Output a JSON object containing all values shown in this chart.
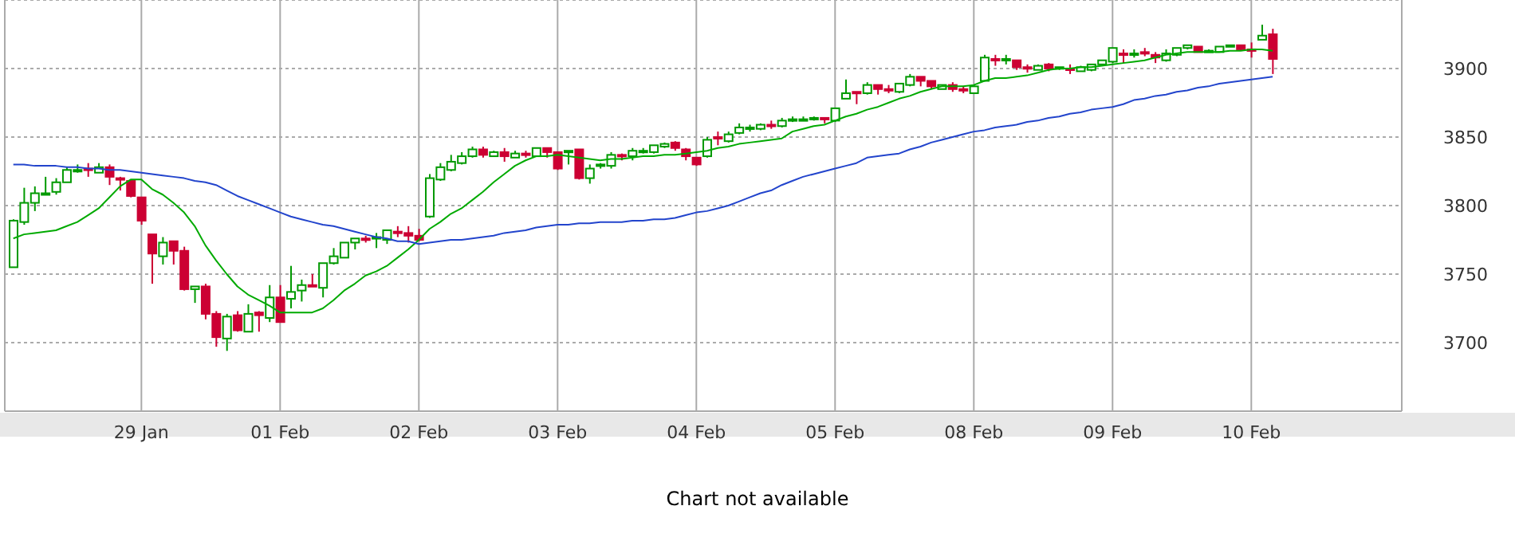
{
  "chart_data": {
    "type": "candlestick",
    "categories": [
      null,
      null,
      null,
      null,
      null,
      null,
      null,
      null,
      null,
      null,
      null,
      null,
      "29 Jan",
      null,
      null,
      null,
      null,
      null,
      null,
      null,
      null,
      null,
      null,
      null,
      null,
      "01 Feb",
      null,
      null,
      null,
      null,
      null,
      null,
      null,
      null,
      null,
      null,
      null,
      null,
      "02 Feb",
      null,
      null,
      null,
      null,
      null,
      null,
      null,
      null,
      null,
      null,
      null,
      null,
      "03 Feb",
      null,
      null,
      null,
      null,
      null,
      null,
      null,
      null,
      null,
      null,
      null,
      null,
      "04 Feb",
      null,
      null,
      null,
      null,
      null,
      null,
      null,
      null,
      null,
      null,
      null,
      null,
      "05 Feb",
      null,
      null,
      null,
      null,
      null,
      null,
      null,
      null,
      null,
      null,
      null,
      null,
      "08 Feb",
      null,
      null,
      null,
      null,
      null,
      null,
      null,
      null,
      null,
      null,
      null,
      null,
      "09 Feb",
      null,
      null,
      null,
      null,
      null,
      null,
      null,
      null,
      null,
      null,
      null,
      null,
      "10 Feb",
      null,
      null
    ],
    "ohlc": [
      [
        3755,
        3790,
        3755,
        3789
      ],
      [
        3788,
        3813,
        3786,
        3802
      ],
      [
        3802,
        3814,
        3796,
        3809
      ],
      [
        3808,
        3821,
        3808,
        3809
      ],
      [
        3810,
        3820,
        3808,
        3817
      ],
      [
        3817,
        3828,
        3817,
        3826
      ],
      [
        3825,
        3830,
        3824,
        3826
      ],
      [
        3827,
        3831,
        3821,
        3826
      ],
      [
        3824,
        3831,
        3824,
        3828
      ],
      [
        3828,
        3830,
        3815,
        3821
      ],
      [
        3820,
        3821,
        3811,
        3819
      ],
      [
        3818,
        3819,
        3806,
        3807
      ],
      [
        3806,
        3806,
        3786,
        3789
      ],
      [
        3779,
        3779,
        3743,
        3765
      ],
      [
        3763,
        3777,
        3757,
        3773
      ],
      [
        3774,
        3774,
        3757,
        3767
      ],
      [
        3767,
        3770,
        3738,
        3739
      ],
      [
        3739,
        3741,
        3729,
        3741
      ],
      [
        3741,
        3743,
        3717,
        3721
      ],
      [
        3721,
        3723,
        3697,
        3704
      ],
      [
        3703,
        3721,
        3694,
        3719
      ],
      [
        3720,
        3723,
        3708,
        3709
      ],
      [
        3708,
        3728,
        3708,
        3721
      ],
      [
        3722,
        3723,
        3708,
        3720
      ],
      [
        3718,
        3742,
        3715,
        3733
      ],
      [
        3733,
        3742,
        3715,
        3715
      ],
      [
        3732,
        3756,
        3725,
        3737
      ],
      [
        3738,
        3746,
        3730,
        3742
      ],
      [
        3742,
        3750,
        3741,
        3741
      ],
      [
        3740,
        3758,
        3733,
        3758
      ],
      [
        3758,
        3769,
        3757,
        3763
      ],
      [
        3762,
        3773,
        3762,
        3773
      ],
      [
        3773,
        3776,
        3768,
        3776
      ],
      [
        3776,
        3778,
        3773,
        3775
      ],
      [
        3776,
        3780,
        3769,
        3777
      ],
      [
        3775,
        3782,
        3772,
        3782
      ],
      [
        3781,
        3785,
        3777,
        3780
      ],
      [
        3780,
        3785,
        3773,
        3778
      ],
      [
        3778,
        3783,
        3774,
        3775
      ],
      [
        3792,
        3823,
        3791,
        3820
      ],
      [
        3819,
        3831,
        3818,
        3828
      ],
      [
        3826,
        3837,
        3825,
        3832
      ],
      [
        3831,
        3839,
        3830,
        3836
      ],
      [
        3836,
        3843,
        3835,
        3841
      ],
      [
        3841,
        3843,
        3835,
        3837
      ],
      [
        3836,
        3840,
        3836,
        3839
      ],
      [
        3839,
        3842,
        3832,
        3836
      ],
      [
        3835,
        3840,
        3835,
        3838
      ],
      [
        3838,
        3840,
        3835,
        3837
      ],
      [
        3836,
        3842,
        3836,
        3842
      ],
      [
        3842,
        3842,
        3835,
        3839
      ],
      [
        3839,
        3839,
        3826,
        3827
      ],
      [
        3839,
        3840,
        3830,
        3840
      ],
      [
        3841,
        3841,
        3819,
        3820
      ],
      [
        3820,
        3830,
        3816,
        3827
      ],
      [
        3829,
        3831,
        3827,
        3830
      ],
      [
        3829,
        3839,
        3827,
        3837
      ],
      [
        3837,
        3838,
        3833,
        3836
      ],
      [
        3836,
        3842,
        3833,
        3840
      ],
      [
        3839,
        3842,
        3838,
        3840
      ],
      [
        3839,
        3844,
        3838,
        3844
      ],
      [
        3843,
        3846,
        3842,
        3845
      ],
      [
        3846,
        3847,
        3840,
        3842
      ],
      [
        3841,
        3842,
        3833,
        3836
      ],
      [
        3835,
        3835,
        3829,
        3830
      ],
      [
        3836,
        3850,
        3835,
        3848
      ],
      [
        3850,
        3854,
        3844,
        3849
      ],
      [
        3847,
        3854,
        3846,
        3852
      ],
      [
        3853,
        3860,
        3852,
        3857
      ],
      [
        3856,
        3859,
        3854,
        3857
      ],
      [
        3856,
        3860,
        3855,
        3859
      ],
      [
        3859,
        3862,
        3856,
        3858
      ],
      [
        3858,
        3864,
        3857,
        3862
      ],
      [
        3862,
        3865,
        3861,
        3863
      ],
      [
        3862,
        3865,
        3862,
        3863
      ],
      [
        3863,
        3865,
        3862,
        3864
      ],
      [
        3864,
        3864,
        3860,
        3863
      ],
      [
        3862,
        3871,
        3861,
        3871
      ],
      [
        3878,
        3892,
        3878,
        3882
      ],
      [
        3883,
        3883,
        3874,
        3882
      ],
      [
        3882,
        3890,
        3881,
        3888
      ],
      [
        3888,
        3888,
        3881,
        3885
      ],
      [
        3885,
        3888,
        3882,
        3884
      ],
      [
        3883,
        3889,
        3882,
        3889
      ],
      [
        3888,
        3896,
        3887,
        3894
      ],
      [
        3894,
        3894,
        3887,
        3891
      ],
      [
        3891,
        3891,
        3885,
        3887
      ],
      [
        3885,
        3888,
        3885,
        3888
      ],
      [
        3888,
        3890,
        3883,
        3885
      ],
      [
        3885,
        3887,
        3882,
        3884
      ],
      [
        3882,
        3888,
        3882,
        3887
      ],
      [
        3891,
        3910,
        3891,
        3908
      ],
      [
        3907,
        3910,
        3902,
        3906
      ],
      [
        3906,
        3910,
        3903,
        3907
      ],
      [
        3906,
        3906,
        3899,
        3901
      ],
      [
        3901,
        3903,
        3897,
        3900
      ],
      [
        3899,
        3903,
        3899,
        3902
      ],
      [
        3903,
        3904,
        3898,
        3900
      ],
      [
        3900,
        3901,
        3899,
        3901
      ],
      [
        3900,
        3903,
        3896,
        3899
      ],
      [
        3898,
        3902,
        3898,
        3901
      ],
      [
        3899,
        3903,
        3898,
        3903
      ],
      [
        3903,
        3906,
        3903,
        3906
      ],
      [
        3905,
        3915,
        3904,
        3915
      ],
      [
        3911,
        3914,
        3904,
        3910
      ],
      [
        3910,
        3914,
        3908,
        3911
      ],
      [
        3912,
        3915,
        3909,
        3911
      ],
      [
        3910,
        3912,
        3904,
        3908
      ],
      [
        3906,
        3914,
        3905,
        3911
      ],
      [
        3910,
        3915,
        3909,
        3915
      ],
      [
        3915,
        3917,
        3914,
        3917
      ],
      [
        3916,
        3916,
        3912,
        3912
      ],
      [
        3912,
        3914,
        3912,
        3913
      ],
      [
        3912,
        3916,
        3912,
        3916
      ],
      [
        3916,
        3917,
        3916,
        3917
      ],
      [
        3917,
        3917,
        3913,
        3914
      ],
      [
        3914,
        3919,
        3908,
        3913
      ],
      [
        3921,
        3932,
        3921,
        3924
      ],
      [
        3925,
        3929,
        3896,
        3907
      ]
    ],
    "colors": [
      "#009900",
      "#009900",
      "#009900",
      "#009900",
      "#009900",
      "#009900",
      "#009900",
      "#cc0033",
      "#009900",
      "#cc0033",
      "#cc0033",
      "#cc0033",
      "#cc0033",
      "#cc0033",
      "#009900",
      "#cc0033",
      "#cc0033",
      "#009900",
      "#cc0033",
      "#cc0033",
      "#009900",
      "#cc0033",
      "#009900",
      "#cc0033",
      "#009900",
      "#cc0033",
      "#009900",
      "#009900",
      "#cc0033",
      "#009900",
      "#009900",
      "#009900",
      "#009900",
      "#cc0033",
      "#009900",
      "#009900",
      "#cc0033",
      "#cc0033",
      "#cc0033",
      "#009900",
      "#009900",
      "#009900",
      "#009900",
      "#009900",
      "#cc0033",
      "#009900",
      "#cc0033",
      "#009900",
      "#cc0033",
      "#009900",
      "#cc0033",
      "#cc0033",
      "#009900",
      "#cc0033",
      "#009900",
      "#009900",
      "#009900",
      "#cc0033",
      "#009900",
      "#009900",
      "#009900",
      "#009900",
      "#cc0033",
      "#cc0033",
      "#cc0033",
      "#009900",
      "#cc0033",
      "#009900",
      "#009900",
      "#009900",
      "#009900",
      "#cc0033",
      "#009900",
      "#009900",
      "#009900",
      "#009900",
      "#cc0033",
      "#009900",
      "#009900",
      "#cc0033",
      "#009900",
      "#cc0033",
      "#cc0033",
      "#009900",
      "#009900",
      "#cc0033",
      "#cc0033",
      "#009900",
      "#cc0033",
      "#cc0033",
      "#009900",
      "#009900",
      "#cc0033",
      "#009900",
      "#cc0033",
      "#cc0033",
      "#009900",
      "#cc0033",
      "#009900",
      "#cc0033",
      "#009900",
      "#009900",
      "#009900",
      "#009900",
      "#cc0033",
      "#009900",
      "#cc0033",
      "#cc0033",
      "#009900",
      "#009900",
      "#009900",
      "#cc0033",
      "#009900",
      "#009900",
      "#009900",
      "#cc0033",
      "#cc0033",
      "#009900",
      "#cc0033"
    ],
    "series": [
      {
        "type": "line",
        "color": "#00aa00",
        "values": [
          3776,
          3779,
          3780,
          3781,
          3782,
          3785,
          3788,
          3793,
          3798,
          3806,
          3814,
          3819,
          3819,
          3812,
          3808,
          3802,
          3795,
          3785,
          3771,
          3760,
          3750,
          3741,
          3735,
          3731,
          3727,
          3722,
          3722,
          3722,
          3722,
          3725,
          3731,
          3738,
          3743,
          3749,
          3752,
          3756,
          3762,
          3768,
          3775,
          3783,
          3788,
          3794,
          3798,
          3804,
          3810,
          3817,
          3823,
          3829,
          3833,
          3836,
          3836,
          3837,
          3836,
          3835,
          3834,
          3833,
          3834,
          3834,
          3835,
          3836,
          3836,
          3837,
          3837,
          3838,
          3839,
          3840,
          3842,
          3843,
          3845,
          3846,
          3847,
          3848,
          3849,
          3854,
          3856,
          3858,
          3859,
          3862,
          3865,
          3867,
          3870,
          3872,
          3875,
          3878,
          3880,
          3883,
          3885,
          3887,
          3887,
          3887,
          3888,
          3891,
          3893,
          3893,
          3894,
          3895,
          3897,
          3899,
          3900,
          3900,
          3901,
          3901,
          3902,
          3903,
          3904,
          3905,
          3906,
          3908,
          3910,
          3911,
          3912,
          3912,
          3912,
          3912,
          3913,
          3913,
          3914,
          3914,
          3913
        ]
      },
      {
        "type": "line",
        "color": "#2244cc",
        "values": [
          3830,
          3830,
          3829,
          3829,
          3829,
          3828,
          3828,
          3827,
          3827,
          3826,
          3826,
          3825,
          3824,
          3823,
          3822,
          3821,
          3820,
          3818,
          3817,
          3815,
          3811,
          3807,
          3804,
          3801,
          3798,
          3795,
          3792,
          3790,
          3788,
          3786,
          3785,
          3783,
          3781,
          3779,
          3777,
          3776,
          3774,
          3774,
          3772,
          3773,
          3774,
          3775,
          3775,
          3776,
          3777,
          3778,
          3780,
          3781,
          3782,
          3784,
          3785,
          3786,
          3786,
          3787,
          3787,
          3788,
          3788,
          3788,
          3789,
          3789,
          3790,
          3790,
          3791,
          3793,
          3795,
          3796,
          3798,
          3800,
          3803,
          3806,
          3809,
          3811,
          3815,
          3818,
          3821,
          3823,
          3825,
          3827,
          3829,
          3831,
          3835,
          3836,
          3837,
          3838,
          3841,
          3843,
          3846,
          3848,
          3850,
          3852,
          3854,
          3855,
          3857,
          3858,
          3859,
          3861,
          3862,
          3864,
          3865,
          3867,
          3868,
          3870,
          3871,
          3872,
          3874,
          3877,
          3878,
          3880,
          3881,
          3883,
          3884,
          3886,
          3887,
          3889,
          3890,
          3891,
          3892,
          3893,
          3894
        ]
      }
    ],
    "ylim": [
      3650,
      3950
    ],
    "yticks": [
      3700,
      3750,
      3800,
      3850,
      3900
    ],
    "grid": true,
    "marker": "none",
    "annotations": [
      "Chart not available"
    ]
  }
}
